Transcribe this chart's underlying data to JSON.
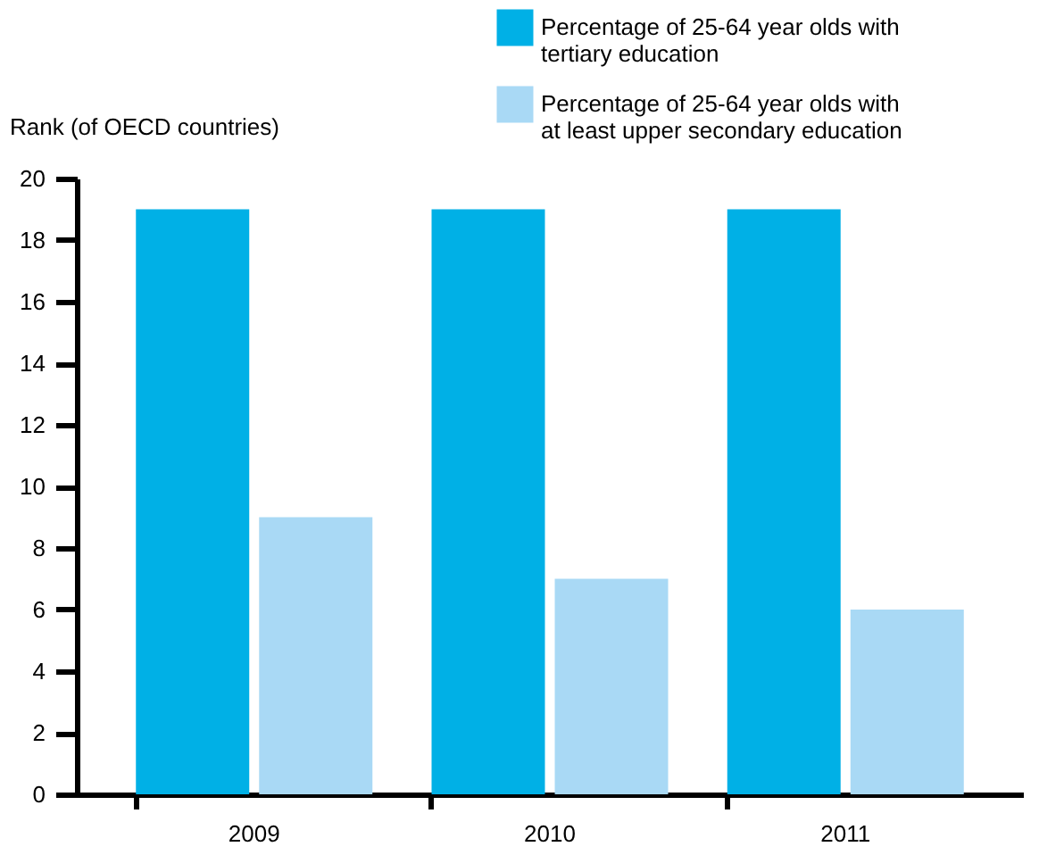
{
  "chart_data": {
    "type": "bar",
    "ylabel": "Rank (of OECD countries)",
    "categories": [
      "2009",
      "2010",
      "2011"
    ],
    "series": [
      {
        "name": "Percentage of 25-64 year olds with tertiary education",
        "color": "#00b0e6",
        "values": [
          19,
          19,
          19
        ]
      },
      {
        "name": "Percentage of 25-64 year olds with at least upper secondary education",
        "color": "#a9d9f5",
        "values": [
          9,
          7,
          6
        ]
      }
    ],
    "ylim": [
      0,
      20
    ],
    "yticks": [
      0,
      2,
      4,
      6,
      8,
      10,
      12,
      14,
      16,
      18,
      20
    ],
    "grid": false,
    "legend": "top right"
  }
}
